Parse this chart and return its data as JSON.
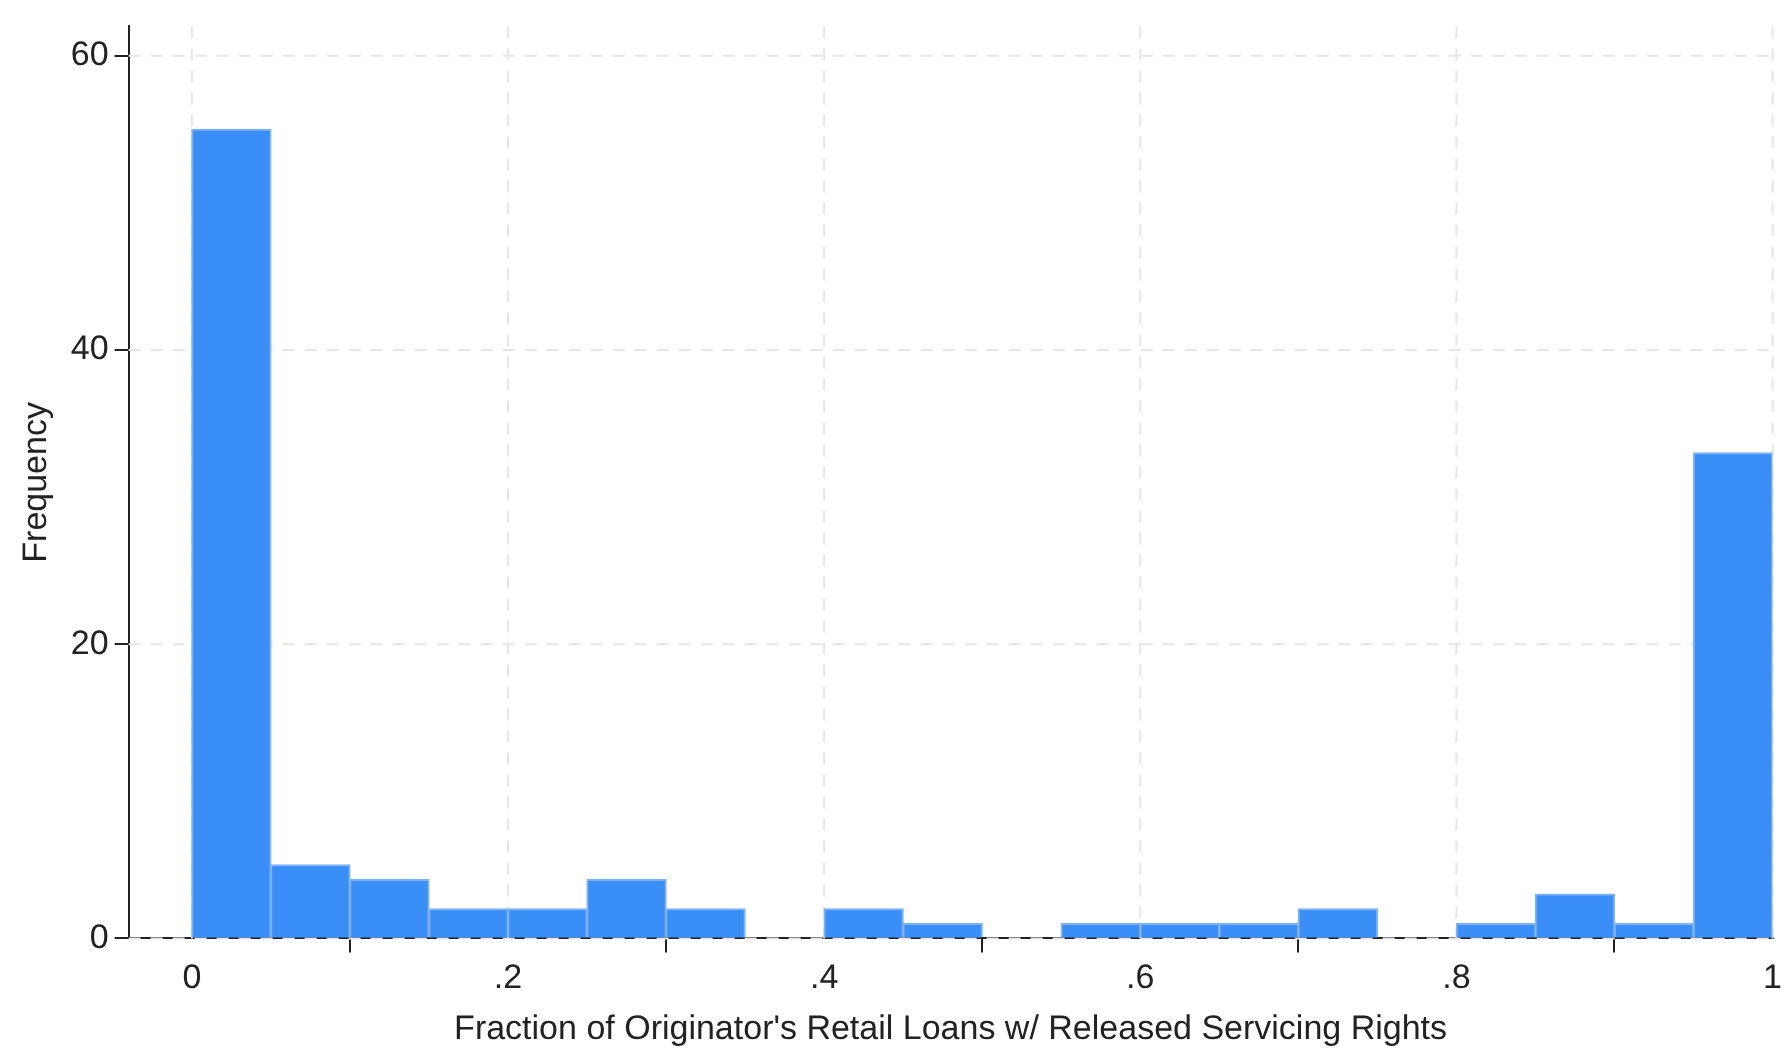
{
  "chart_data": {
    "type": "histogram",
    "xlabel": "Fraction of Originator's Retail Loans w/ Released Servicing Rights",
    "ylabel": "Frequency",
    "bins": [
      0,
      0.05,
      0.1,
      0.15,
      0.2,
      0.25,
      0.3,
      0.35,
      0.4,
      0.45,
      0.5,
      0.55,
      0.6,
      0.65,
      0.7,
      0.75,
      0.8,
      0.85,
      0.9,
      0.95,
      1
    ],
    "values": [
      55,
      5,
      4,
      2,
      2,
      4,
      2,
      0,
      2,
      1,
      0,
      1,
      1,
      1,
      2,
      0,
      1,
      3,
      1,
      33
    ],
    "color": "#3a8ef8",
    "xlim": [
      -0.04,
      1
    ],
    "xticks": [
      0,
      {
        "value": 0.2,
        "label": ".2"
      },
      {
        "value": 0.4,
        "label": ".4"
      },
      {
        "value": 0.6,
        "label": ".6"
      },
      {
        "value": 0.8,
        "label": ".8"
      },
      1
    ],
    "ylim": [
      0,
      62
    ],
    "yticks": [
      0,
      20,
      40,
      60
    ],
    "grid": true,
    "legend": false
  }
}
